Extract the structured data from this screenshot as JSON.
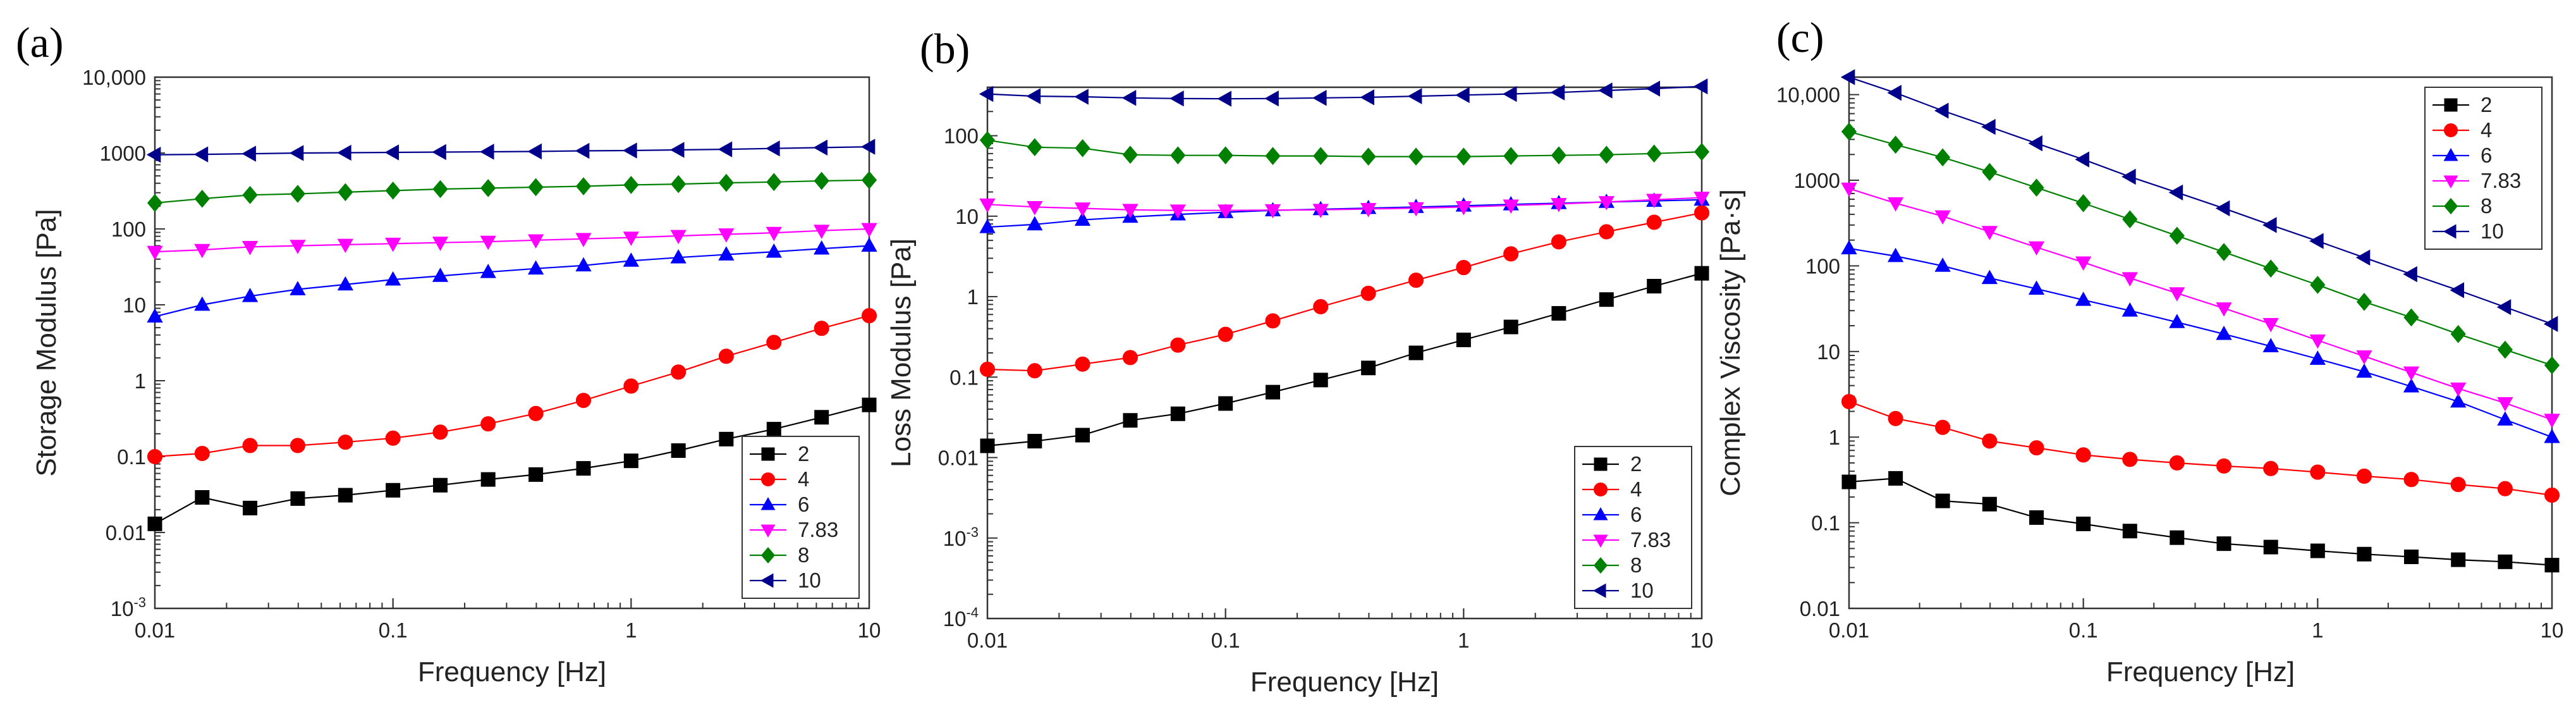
{
  "chart_data": [
    {
      "type": "line",
      "panel_label": "(a)",
      "xlabel": "Frequency [Hz]",
      "ylabel": "Storage Modulus [Pa]",
      "xscale": "log",
      "yscale": "log",
      "xlim": [
        0.01,
        10
      ],
      "ylim": [
        0.001,
        10000
      ],
      "x_ticks": [
        {
          "v": 0.01,
          "label": "0.01"
        },
        {
          "v": 0.1,
          "label": "0.1"
        },
        {
          "v": 1,
          "label": "1"
        },
        {
          "v": 10,
          "label": "10"
        }
      ],
      "y_ticks": [
        {
          "v": 0.001,
          "label": "10",
          "sup": "-3"
        },
        {
          "v": 0.01,
          "label": "0.01"
        },
        {
          "v": 0.1,
          "label": "0.1"
        },
        {
          "v": 1,
          "label": "1"
        },
        {
          "v": 10,
          "label": "10"
        },
        {
          "v": 100,
          "label": "100"
        },
        {
          "v": 1000,
          "label": "1000"
        },
        {
          "v": 10000,
          "label": "10,000"
        }
      ],
      "legend_position": "bottom-right",
      "x": [
        0.01,
        0.0158,
        0.0251,
        0.0398,
        0.0631,
        0.1,
        0.158,
        0.251,
        0.398,
        0.631,
        1,
        1.58,
        2.51,
        3.98,
        6.31,
        10
      ],
      "series": [
        {
          "name": "2",
          "color": "#000000",
          "marker": "square",
          "values": [
            0.013,
            0.029,
            0.021,
            0.028,
            0.031,
            0.036,
            0.042,
            0.05,
            0.058,
            0.07,
            0.088,
            0.12,
            0.17,
            0.23,
            0.33,
            0.48
          ]
        },
        {
          "name": "4",
          "color": "#ff0000",
          "marker": "circle",
          "values": [
            0.1,
            0.11,
            0.14,
            0.14,
            0.155,
            0.175,
            0.21,
            0.27,
            0.37,
            0.55,
            0.85,
            1.3,
            2.1,
            3.2,
            4.9,
            7.2
          ]
        },
        {
          "name": "6",
          "color": "#0000ff",
          "marker": "triangle-up",
          "values": [
            7,
            10,
            13,
            16,
            18.5,
            21.5,
            24,
            27,
            30,
            33,
            38,
            42,
            46,
            50,
            55,
            60
          ]
        },
        {
          "name": "7.83",
          "color": "#ff00ff",
          "marker": "triangle-down",
          "values": [
            50,
            53,
            58,
            60,
            62,
            64,
            66,
            68,
            71,
            74,
            77,
            81,
            85,
            89,
            95,
            100
          ]
        },
        {
          "name": "8",
          "color": "#008000",
          "marker": "diamond",
          "values": [
            220,
            250,
            280,
            290,
            305,
            320,
            335,
            345,
            355,
            365,
            380,
            390,
            405,
            415,
            430,
            440
          ]
        },
        {
          "name": "10",
          "color": "#00008b",
          "marker": "triangle-left",
          "values": [
            950,
            960,
            980,
            1000,
            1010,
            1020,
            1030,
            1040,
            1050,
            1070,
            1080,
            1100,
            1120,
            1150,
            1180,
            1210
          ]
        }
      ]
    },
    {
      "type": "line",
      "panel_label": "(b)",
      "xlabel": "Frequency [Hz]",
      "ylabel": "Loss Modulus [Pa]",
      "xscale": "log",
      "yscale": "log",
      "xlim": [
        0.01,
        10
      ],
      "ylim": [
        0.0001,
        400
      ],
      "x_ticks": [
        {
          "v": 0.01,
          "label": "0.01"
        },
        {
          "v": 0.1,
          "label": "0.1"
        },
        {
          "v": 1,
          "label": "1"
        },
        {
          "v": 10,
          "label": "10"
        }
      ],
      "y_ticks": [
        {
          "v": 0.0001,
          "label": "10",
          "sup": "-4"
        },
        {
          "v": 0.001,
          "label": "10",
          "sup": "-3"
        },
        {
          "v": 0.01,
          "label": "0.01"
        },
        {
          "v": 0.1,
          "label": "0.1"
        },
        {
          "v": 1,
          "label": "1"
        },
        {
          "v": 10,
          "label": "10"
        },
        {
          "v": 100,
          "label": "100"
        }
      ],
      "legend_position": "bottom-right",
      "x": [
        0.01,
        0.0158,
        0.0251,
        0.0398,
        0.0631,
        0.1,
        0.158,
        0.251,
        0.398,
        0.631,
        1,
        1.58,
        2.51,
        3.98,
        6.31,
        10
      ],
      "series": [
        {
          "name": "2",
          "color": "#000000",
          "marker": "square",
          "values": [
            0.014,
            0.016,
            0.019,
            0.029,
            0.035,
            0.047,
            0.065,
            0.092,
            0.13,
            0.2,
            0.29,
            0.42,
            0.62,
            0.92,
            1.35,
            1.95
          ]
        },
        {
          "name": "4",
          "color": "#ff0000",
          "marker": "circle",
          "values": [
            0.125,
            0.12,
            0.145,
            0.175,
            0.25,
            0.34,
            0.5,
            0.75,
            1.1,
            1.6,
            2.3,
            3.4,
            4.8,
            6.4,
            8.4,
            11
          ]
        },
        {
          "name": "6",
          "color": "#0000ff",
          "marker": "triangle-up",
          "values": [
            7.3,
            7.9,
            9,
            9.8,
            10.5,
            11.2,
            11.8,
            12.2,
            12.6,
            13,
            13.5,
            14,
            14.5,
            15,
            15.5,
            16
          ]
        },
        {
          "name": "7.83",
          "color": "#ff00ff",
          "marker": "triangle-down",
          "values": [
            14,
            13,
            12.5,
            12,
            11.8,
            11.8,
            11.9,
            12,
            12.3,
            12.6,
            13,
            13.6,
            14.2,
            15,
            16,
            17
          ]
        },
        {
          "name": "8",
          "color": "#008000",
          "marker": "diamond",
          "values": [
            88,
            72,
            70,
            58,
            57,
            57,
            56,
            56,
            55,
            55,
            55,
            56,
            57,
            58,
            60,
            63
          ]
        },
        {
          "name": "10",
          "color": "#00008b",
          "marker": "triangle-left",
          "values": [
            330,
            310,
            305,
            295,
            290,
            288,
            290,
            295,
            300,
            310,
            320,
            330,
            345,
            365,
            385,
            410
          ]
        }
      ]
    },
    {
      "type": "line",
      "panel_label": "(c)",
      "xlabel": "Frequency [Hz]",
      "ylabel": "Complex Viscosity [Pa·s]",
      "xscale": "log",
      "yscale": "log",
      "xlim": [
        0.01,
        10
      ],
      "ylim": [
        0.01,
        16000
      ],
      "x_ticks": [
        {
          "v": 0.01,
          "label": "0.01"
        },
        {
          "v": 0.1,
          "label": "0.1"
        },
        {
          "v": 1,
          "label": "1"
        },
        {
          "v": 10,
          "label": "10"
        }
      ],
      "y_ticks": [
        {
          "v": 0.01,
          "label": "0.01"
        },
        {
          "v": 0.1,
          "label": "0.1"
        },
        {
          "v": 1,
          "label": "1"
        },
        {
          "v": 10,
          "label": "10"
        },
        {
          "v": 100,
          "label": "100"
        },
        {
          "v": 1000,
          "label": "1000"
        },
        {
          "v": 10000,
          "label": "10,000"
        }
      ],
      "legend_position": "top-right",
      "x": [
        0.01,
        0.0158,
        0.0251,
        0.0398,
        0.0631,
        0.1,
        0.158,
        0.251,
        0.398,
        0.631,
        1,
        1.58,
        2.51,
        3.98,
        6.31,
        10
      ],
      "series": [
        {
          "name": "2",
          "color": "#000000",
          "marker": "square",
          "values": [
            0.3,
            0.33,
            0.18,
            0.165,
            0.115,
            0.097,
            0.08,
            0.067,
            0.057,
            0.052,
            0.047,
            0.043,
            0.04,
            0.037,
            0.035,
            0.032
          ]
        },
        {
          "name": "4",
          "color": "#ff0000",
          "marker": "circle",
          "values": [
            2.6,
            1.65,
            1.3,
            0.9,
            0.75,
            0.62,
            0.55,
            0.5,
            0.46,
            0.43,
            0.39,
            0.35,
            0.32,
            0.28,
            0.25,
            0.21
          ]
        },
        {
          "name": "6",
          "color": "#0000ff",
          "marker": "triangle-up",
          "values": [
            160,
            130,
            100,
            72,
            54,
            40,
            30,
            22,
            16,
            11.5,
            8.2,
            5.8,
            3.9,
            2.6,
            1.6,
            1.0
          ]
        },
        {
          "name": "7.83",
          "color": "#ff00ff",
          "marker": "triangle-down",
          "values": [
            800,
            540,
            380,
            250,
            165,
            110,
            72,
            48,
            32,
            21,
            13.5,
            8.8,
            5.7,
            3.7,
            2.5,
            1.6
          ]
        },
        {
          "name": "8",
          "color": "#008000",
          "marker": "diamond",
          "values": [
            3700,
            2600,
            1850,
            1250,
            820,
            540,
            350,
            225,
            145,
            93,
            60,
            38,
            25,
            16,
            10.5,
            6.9
          ]
        },
        {
          "name": "10",
          "color": "#00008b",
          "marker": "triangle-left",
          "values": [
            16000,
            10500,
            6500,
            4200,
            2700,
            1750,
            1100,
            720,
            470,
            300,
            195,
            125,
            80,
            52,
            33,
            21
          ]
        }
      ]
    }
  ]
}
